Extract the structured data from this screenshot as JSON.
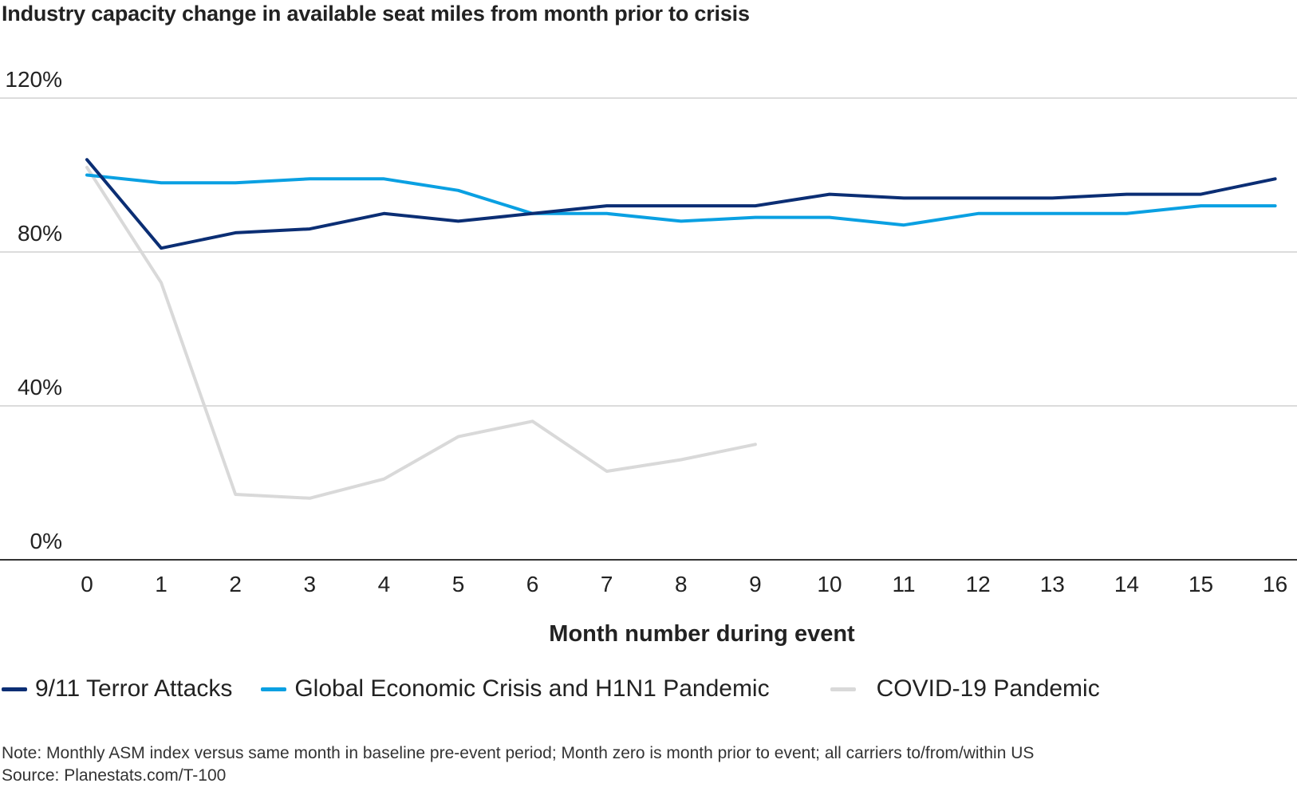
{
  "chart_data": {
    "type": "line",
    "title": "Industry capacity change in available seat miles from month prior to crisis",
    "xlabel": "Month number during event",
    "ylabel": "",
    "x": [
      0,
      1,
      2,
      3,
      4,
      5,
      6,
      7,
      8,
      9,
      10,
      11,
      12,
      13,
      14,
      15,
      16
    ],
    "x_tick_labels": [
      "0",
      "1",
      "2",
      "3",
      "4",
      "5",
      "6",
      "7",
      "8",
      "9",
      "10",
      "11",
      "12",
      "13",
      "14",
      "15",
      "16"
    ],
    "ylim": [
      0,
      120
    ],
    "y_ticks": [
      0,
      40,
      80,
      120
    ],
    "y_tick_labels": [
      "0%",
      "40%",
      "80%",
      "120%"
    ],
    "grid": true,
    "legend_position": "bottom-left",
    "series": [
      {
        "name": "9/11 Terror Attacks",
        "color": "#0b2e74",
        "values": [
          104,
          81,
          85,
          86,
          90,
          88,
          90,
          92,
          92,
          92,
          95,
          94,
          94,
          94,
          95,
          95,
          99
        ]
      },
      {
        "name": "Global Economic Crisis and H1N1 Pandemic",
        "color": "#0aa0e2",
        "values": [
          100,
          98,
          98,
          99,
          99,
          96,
          90,
          90,
          88,
          89,
          89,
          87,
          90,
          90,
          90,
          92,
          92
        ]
      },
      {
        "name": "COVID-19 Pandemic",
        "color": "#d9d9d9",
        "values": [
          102,
          72,
          17,
          16,
          21,
          32,
          36,
          23,
          26,
          30,
          null,
          null,
          null,
          null,
          null,
          null,
          null
        ]
      }
    ]
  },
  "footer": {
    "note": "Note: Monthly ASM index versus same month in baseline pre-event period; Month zero is month prior to event; all carriers to/from/within US",
    "source": "Source: Planestats.com/T-100"
  }
}
